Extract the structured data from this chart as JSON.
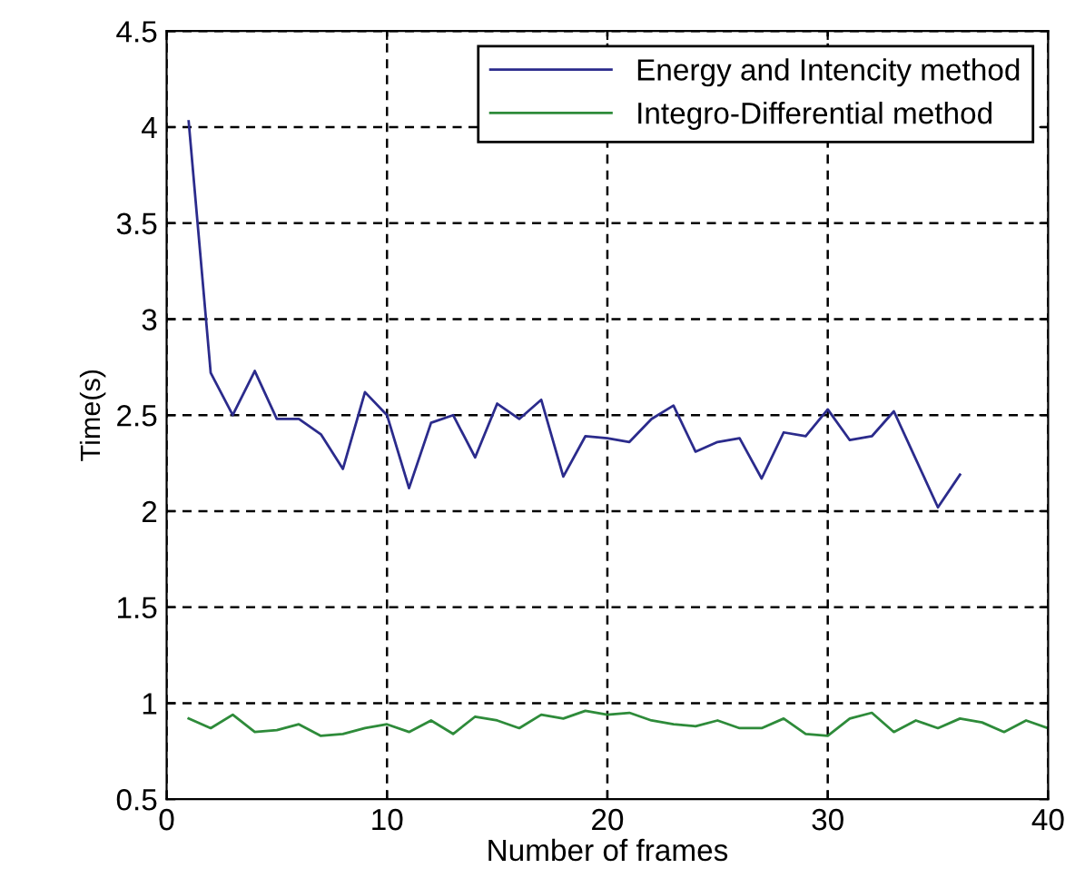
{
  "chart_data": {
    "type": "line",
    "xlabel": "Number of frames",
    "ylabel": "Time(s)",
    "xlim": [
      0,
      40
    ],
    "ylim": [
      0.5,
      4.5
    ],
    "xticks": [
      0,
      10,
      20,
      30,
      40
    ],
    "yticks": [
      0.5,
      1,
      1.5,
      2,
      2.5,
      3,
      3.5,
      4,
      4.5
    ],
    "grid": true,
    "legend": "top right",
    "series": [
      {
        "name": "Energy and Intencity method",
        "color": "#2b2b8c",
        "x": [
          1,
          2,
          3,
          4,
          5,
          6,
          7,
          8,
          9,
          10,
          11,
          12,
          13,
          14,
          15,
          16,
          17,
          18,
          19,
          20,
          21,
          22,
          23,
          24,
          25,
          26,
          27,
          28,
          29,
          30,
          31,
          32,
          33,
          34,
          35,
          36
        ],
        "values": [
          4.03,
          2.72,
          2.5,
          2.73,
          2.48,
          2.48,
          2.4,
          2.22,
          2.62,
          2.5,
          2.12,
          2.46,
          2.5,
          2.28,
          2.56,
          2.48,
          2.58,
          2.18,
          2.39,
          2.38,
          2.36,
          2.48,
          2.55,
          2.31,
          2.36,
          2.38,
          2.17,
          2.41,
          2.39,
          2.53,
          2.37,
          2.39,
          2.52,
          2.27,
          2.02,
          2.19
        ]
      },
      {
        "name": "Integro-Differential method",
        "color": "#2e8b3a",
        "x": [
          1,
          2,
          3,
          4,
          5,
          6,
          7,
          8,
          9,
          10,
          11,
          12,
          13,
          14,
          15,
          16,
          17,
          18,
          19,
          20,
          21,
          22,
          23,
          24,
          25,
          26,
          27,
          28,
          29,
          30,
          31,
          32,
          33,
          34,
          35,
          36,
          37,
          38,
          39,
          40
        ],
        "values": [
          0.92,
          0.87,
          0.94,
          0.85,
          0.86,
          0.89,
          0.83,
          0.84,
          0.87,
          0.89,
          0.85,
          0.91,
          0.84,
          0.93,
          0.91,
          0.87,
          0.94,
          0.92,
          0.96,
          0.94,
          0.95,
          0.91,
          0.89,
          0.88,
          0.91,
          0.87,
          0.87,
          0.92,
          0.84,
          0.83,
          0.92,
          0.95,
          0.85,
          0.91,
          0.87,
          0.92,
          0.9,
          0.85,
          0.91,
          0.87
        ]
      }
    ]
  }
}
